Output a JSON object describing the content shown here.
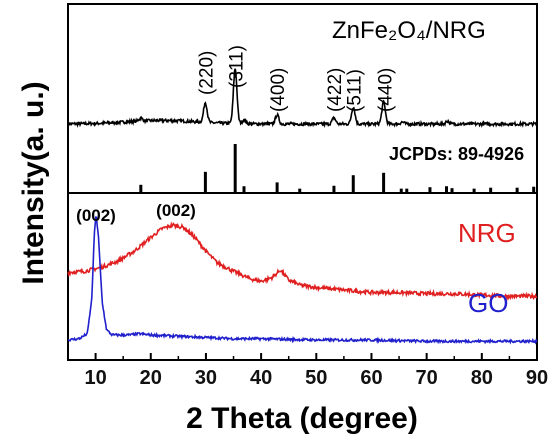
{
  "chart_data": {
    "type": "line",
    "xlabel": "2 Theta (degree)",
    "ylabel": "Intensity(a. u.)",
    "xlim": [
      5,
      90
    ],
    "x_ticks": [
      10,
      20,
      30,
      40,
      50,
      60,
      70,
      80,
      90
    ],
    "grid": false,
    "top_panel": {
      "sample_label": "ZnFe₂O₄/NRG",
      "reference_label": "JCPDs: 89-4926",
      "peak_labels": [
        {
          "text": "(220)",
          "x": 30.1
        },
        {
          "text": "(311)",
          "x": 35.5
        },
        {
          "text": "(400)",
          "x": 43.1
        },
        {
          "text": "(422)",
          "x": 53.4
        },
        {
          "text": "(511)",
          "x": 56.9
        },
        {
          "text": "(440)",
          "x": 62.5
        }
      ],
      "pattern_peaks": [
        {
          "x": 18.2,
          "height": 0.03
        },
        {
          "x": 29.9,
          "height": 0.2
        },
        {
          "x": 35.3,
          "height": 0.55
        },
        {
          "x": 36.9,
          "height": 0.04
        },
        {
          "x": 42.9,
          "height": 0.09
        },
        {
          "x": 53.2,
          "height": 0.06
        },
        {
          "x": 56.7,
          "height": 0.17
        },
        {
          "x": 62.2,
          "height": 0.22
        },
        {
          "x": 65.6,
          "height": 0.02
        },
        {
          "x": 73.8,
          "height": 0.03
        }
      ],
      "reference_bars": [
        {
          "x": 18.2,
          "height": 0.15
        },
        {
          "x": 29.9,
          "height": 0.42
        },
        {
          "x": 35.3,
          "height": 1.0
        },
        {
          "x": 36.9,
          "height": 0.12
        },
        {
          "x": 42.9,
          "height": 0.2
        },
        {
          "x": 47.0,
          "height": 0.07
        },
        {
          "x": 53.2,
          "height": 0.13
        },
        {
          "x": 56.7,
          "height": 0.35
        },
        {
          "x": 62.2,
          "height": 0.4
        },
        {
          "x": 65.4,
          "height": 0.07
        },
        {
          "x": 66.4,
          "height": 0.07
        },
        {
          "x": 70.6,
          "height": 0.1
        },
        {
          "x": 73.6,
          "height": 0.12
        },
        {
          "x": 74.6,
          "height": 0.08
        },
        {
          "x": 78.6,
          "height": 0.07
        },
        {
          "x": 81.6,
          "height": 0.09
        },
        {
          "x": 86.4,
          "height": 0.09
        },
        {
          "x": 89.4,
          "height": 0.11
        }
      ]
    },
    "bottom_panel": {
      "series": [
        {
          "name": "NRG",
          "color": "#e02020",
          "peak_label": "(002)",
          "peak_label_x": 24.5,
          "points": [
            [
              5,
              0.62
            ],
            [
              8,
              0.63
            ],
            [
              11,
              0.66
            ],
            [
              14,
              0.71
            ],
            [
              17,
              0.79
            ],
            [
              20,
              0.9
            ],
            [
              22,
              0.97
            ],
            [
              24,
              1.0
            ],
            [
              26,
              0.98
            ],
            [
              28,
              0.9
            ],
            [
              30,
              0.79
            ],
            [
              32,
              0.7
            ],
            [
              35,
              0.63
            ],
            [
              38,
              0.57
            ],
            [
              40,
              0.55
            ],
            [
              42,
              0.58
            ],
            [
              43.5,
              0.64
            ],
            [
              45,
              0.56
            ],
            [
              47,
              0.52
            ],
            [
              50,
              0.5
            ],
            [
              55,
              0.48
            ],
            [
              60,
              0.46
            ],
            [
              65,
              0.46
            ],
            [
              70,
              0.45
            ],
            [
              75,
              0.45
            ],
            [
              80,
              0.44
            ],
            [
              85,
              0.43
            ],
            [
              90,
              0.43
            ]
          ]
        },
        {
          "name": "GO",
          "color": "#2020cc",
          "peak_label": "(002)",
          "peak_label_x": 10,
          "points": [
            [
              5,
              0.08
            ],
            [
              7,
              0.09
            ],
            [
              8.5,
              0.13
            ],
            [
              9.3,
              0.4
            ],
            [
              9.8,
              0.95
            ],
            [
              10.1,
              1.08
            ],
            [
              10.5,
              0.92
            ],
            [
              11.2,
              0.38
            ],
            [
              12,
              0.16
            ],
            [
              13,
              0.12
            ],
            [
              16,
              0.12
            ],
            [
              18,
              0.13
            ],
            [
              20,
              0.12
            ],
            [
              25,
              0.11
            ],
            [
              30,
              0.1
            ],
            [
              35,
              0.09
            ],
            [
              40,
              0.09
            ],
            [
              50,
              0.08
            ],
            [
              60,
              0.08
            ],
            [
              70,
              0.07
            ],
            [
              80,
              0.07
            ],
            [
              90,
              0.07
            ]
          ]
        }
      ]
    }
  }
}
